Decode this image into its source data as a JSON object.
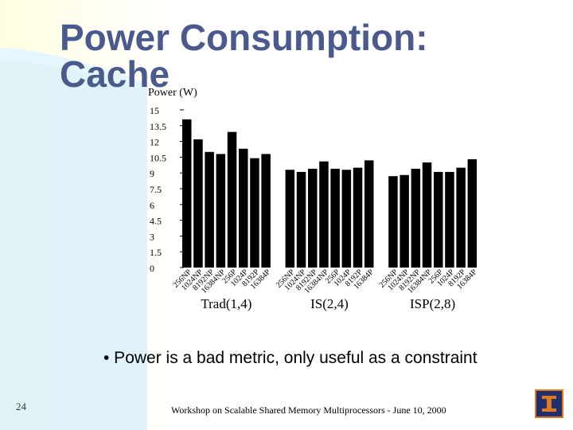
{
  "slide": {
    "title_line1": "Power Consumption:",
    "title_line2": "Cache",
    "bullet": "• Power is a bad metric, only useful as a constraint",
    "footer": "Workshop on Scalable Shared Memory Multiprocessors - June 10, 2000",
    "slide_number": "24"
  },
  "chart_data": {
    "type": "bar",
    "ylabel": "Power (W)",
    "ylim": [
      0,
      15
    ],
    "yticks": [
      "0",
      "1.5",
      "3",
      "4.5",
      "6",
      "7.5",
      "9",
      "10.5",
      "12",
      "13.5",
      "15"
    ],
    "groups": [
      {
        "label": "Trad(1,4)",
        "categories": [
          "256NP",
          "1024NP",
          "8192NP",
          "16384NP",
          "256P",
          "1024P",
          "8192P",
          "16384P"
        ],
        "values": [
          14.1,
          12.2,
          11.0,
          10.8,
          12.9,
          11.3,
          10.4,
          10.8
        ]
      },
      {
        "label": "IS(2,4)",
        "categories": [
          "256NP",
          "1024NP",
          "8192NP",
          "16384NP",
          "256P",
          "1024P",
          "8192P",
          "16384P"
        ],
        "values": [
          9.3,
          9.1,
          9.4,
          10.1,
          9.4,
          9.3,
          9.5,
          10.2
        ]
      },
      {
        "label": "ISP(2,8)",
        "categories": [
          "256NP",
          "1024NP",
          "8192NP",
          "16384NP",
          "256P",
          "1024P",
          "8192P",
          "16384P"
        ],
        "values": [
          8.7,
          8.8,
          9.4,
          10.0,
          9.1,
          9.1,
          9.5,
          10.3
        ]
      }
    ]
  }
}
